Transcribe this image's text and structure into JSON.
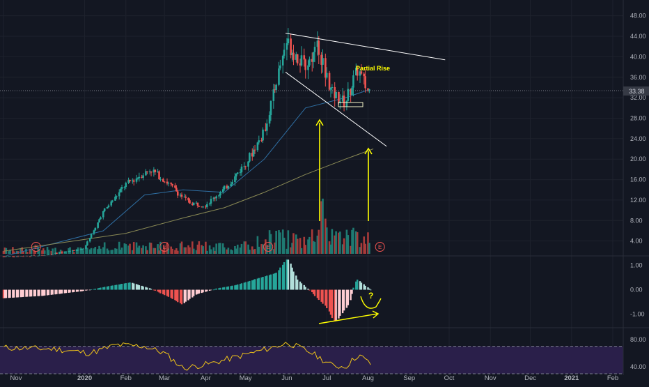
{
  "colors": {
    "background": "#131722",
    "grid": "#1e222d",
    "up": "#26a69a",
    "down": "#ef5350",
    "volume_up": "#1f7a72",
    "volume_down": "#a83b3a",
    "annotation": "#ffff00",
    "trendline": "#ffffff",
    "ma_fast": "#2f6fa3",
    "ma_slow": "#8a8a55",
    "rsi_line": "#f0c419",
    "rsi_band": "#2a1f4a",
    "text": "#b2b5be",
    "last_price_box": "#363a45"
  },
  "chart_data": {
    "type": "candlestick",
    "price_axis": {
      "ticks": [
        "48.00",
        "44.00",
        "40.00",
        "36.00",
        "32.00",
        "28.00",
        "24.00",
        "20.00",
        "16.00",
        "12.00",
        "8.00",
        "4.00"
      ],
      "range": [
        1.5,
        50
      ]
    },
    "last_price": "33.38",
    "x_axis": {
      "labels": [
        "Nov",
        "2020",
        "Feb",
        "Mar",
        "Apr",
        "May",
        "Jun",
        "Jul",
        "Aug",
        "Sep",
        "Oct",
        "Nov",
        "Dec",
        "2021",
        "Feb"
      ]
    },
    "price_series": [
      {
        "t": "2019-11-01",
        "p": 1.0
      },
      {
        "t": "2019-12-01",
        "p": 1.2
      },
      {
        "t": "2020-01-01",
        "p": 2.5
      },
      {
        "t": "2020-01-15",
        "p": 9.5
      },
      {
        "t": "2020-02-01",
        "p": 15.0
      },
      {
        "t": "2020-02-20",
        "p": 18.0
      },
      {
        "t": "2020-03-01",
        "p": 16.0
      },
      {
        "t": "2020-03-20",
        "p": 11.5
      },
      {
        "t": "2020-04-01",
        "p": 11.0
      },
      {
        "t": "2020-04-15",
        "p": 14.0
      },
      {
        "t": "2020-05-01",
        "p": 19.0
      },
      {
        "t": "2020-05-15",
        "p": 25.0
      },
      {
        "t": "2020-06-01",
        "p": 43.0
      },
      {
        "t": "2020-06-15",
        "p": 38.0
      },
      {
        "t": "2020-06-25",
        "p": 42.0
      },
      {
        "t": "2020-07-05",
        "p": 33.0
      },
      {
        "t": "2020-07-15",
        "p": 31.0
      },
      {
        "t": "2020-07-25",
        "p": 37.5
      },
      {
        "t": "2020-08-01",
        "p": 33.4
      }
    ],
    "ma_fast": [
      {
        "t": "2019-11-01",
        "p": 1.0
      },
      {
        "t": "2020-01-15",
        "p": 6.0
      },
      {
        "t": "2020-02-15",
        "p": 13.0
      },
      {
        "t": "2020-03-15",
        "p": 14.0
      },
      {
        "t": "2020-04-15",
        "p": 13.5
      },
      {
        "t": "2020-05-15",
        "p": 20.0
      },
      {
        "t": "2020-06-15",
        "p": 30.0
      },
      {
        "t": "2020-07-15",
        "p": 32.0
      },
      {
        "t": "2020-08-01",
        "p": 33.5
      }
    ],
    "ma_slow": [
      {
        "t": "2019-11-01",
        "p": 2.0
      },
      {
        "t": "2020-02-01",
        "p": 5.5
      },
      {
        "t": "2020-03-15",
        "p": 8.5
      },
      {
        "t": "2020-04-15",
        "p": 10.5
      },
      {
        "t": "2020-05-15",
        "p": 13.5
      },
      {
        "t": "2020-06-15",
        "p": 17.0
      },
      {
        "t": "2020-07-15",
        "p": 20.0
      },
      {
        "t": "2020-08-05",
        "p": 22.0
      }
    ],
    "trendlines": [
      {
        "from": {
          "t": "2020-05-31",
          "p": 44.6
        },
        "to": {
          "t": "2020-09-28",
          "p": 39.4
        }
      },
      {
        "from": {
          "t": "2020-05-31",
          "p": 37.0
        },
        "to": {
          "t": "2020-08-15",
          "p": 22.5
        }
      }
    ],
    "earnings_dates": [
      "2019-11-15",
      "2020-03-01",
      "2020-05-18",
      "2020-08-10"
    ],
    "earnings_label": "E",
    "annotations": {
      "partial_rise": "Partial Rise",
      "question": "?"
    },
    "macd": {
      "ticks": [
        "1.00",
        "0.00",
        "-1.00"
      ],
      "range": [
        -1.5,
        1.3
      ]
    },
    "rsi": {
      "ticks": [
        "80.00",
        "40.00"
      ],
      "range": [
        30,
        95
      ],
      "band": [
        30,
        70
      ]
    }
  }
}
